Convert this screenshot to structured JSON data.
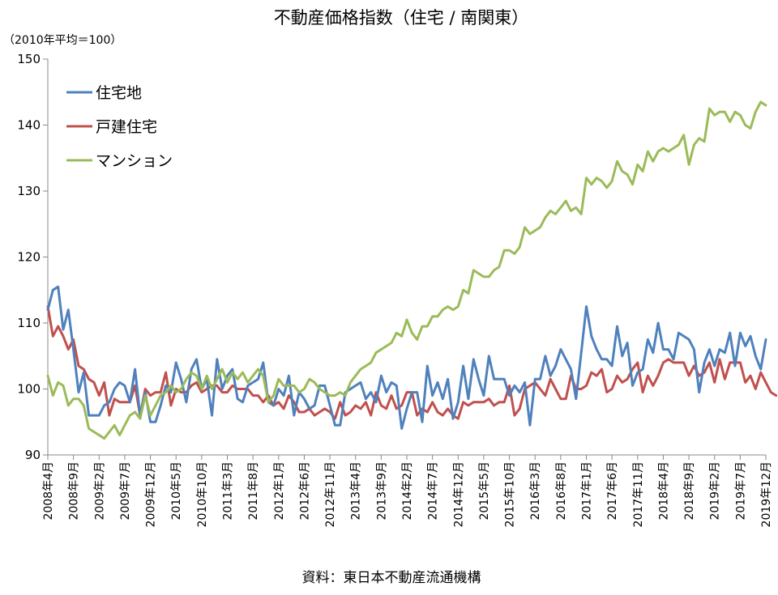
{
  "chart_data": {
    "type": "line",
    "title": "不動産価格指数（住宅 / 南関東）",
    "unit_label": "（2010年平均＝100）",
    "source": "資料：東日本不動産流通機構",
    "ylim": [
      90,
      150
    ],
    "yticks": [
      90,
      100,
      110,
      120,
      130,
      140,
      150
    ],
    "grid": false,
    "legend_position": "top-left",
    "x_start": "2008-04",
    "x_end": "2019-12",
    "x_tick_labels": [
      "2008年4月",
      "2008年9月",
      "2009年2月",
      "2009年7月",
      "2009年12月",
      "2010年5月",
      "2010年10月",
      "2011年3月",
      "2011年8月",
      "2012年1月",
      "2012年6月",
      "2012年11月",
      "2013年4月",
      "2013年9月",
      "2014年2月",
      "2014年7月",
      "2014年12月",
      "2015年5月",
      "2015年10月",
      "2016年3月",
      "2016年8月",
      "2017年1月",
      "2017年6月",
      "2017年11月",
      "2018年4月",
      "2018年9月",
      "2019年2月",
      "2019年7月",
      "2019年12月"
    ],
    "series": [
      {
        "name": "住宅地",
        "color": "#4F81BD",
        "values": [
          112,
          115,
          115.5,
          109,
          112,
          106,
          99.5,
          102.5,
          96,
          96,
          96,
          97.5,
          98,
          100,
          101,
          100.5,
          98,
          103,
          96,
          99.5,
          95,
          95,
          97.5,
          100.5,
          99.5,
          104,
          101.5,
          98,
          103,
          104.5,
          100,
          101.5,
          96,
          104.5,
          100,
          102,
          103,
          98.5,
          98,
          100.5,
          101,
          101.5,
          104,
          98,
          97.5,
          100,
          99,
          102,
          96,
          99.5,
          98.5,
          97,
          97.5,
          100.5,
          100.5,
          97.5,
          94.5,
          94.5,
          99.5,
          100,
          100.5,
          101,
          98.5,
          99.5,
          98,
          102,
          99.5,
          101,
          100.5,
          94,
          97,
          99.5,
          99.5,
          95,
          103.5,
          99,
          101,
          98.5,
          101.5,
          95.5,
          98,
          103.5,
          98.5,
          104.5,
          101.5,
          99,
          105,
          101.5,
          101.5,
          101.5,
          99,
          100.5,
          99.5,
          101,
          94.5,
          101.5,
          101.5,
          105,
          102,
          103.5,
          106,
          104.5,
          103,
          98.5,
          105.5,
          112.5,
          108,
          106,
          104.5,
          104.5,
          103.5,
          109.5,
          105,
          107,
          100.5,
          102.5,
          103,
          107.5,
          105.5,
          110,
          106,
          106,
          104.5,
          108.5,
          108,
          107.5,
          106,
          99.5,
          104,
          106,
          103.5,
          106,
          105.5,
          108.5,
          103.5,
          108.5,
          106.5,
          108,
          105,
          103,
          107.5
        ]
      },
      {
        "name": "戸建住宅",
        "color": "#C0504D",
        "values": [
          112.5,
          108,
          109.5,
          108,
          106,
          107.5,
          103.5,
          103,
          101.5,
          101,
          99,
          101,
          96,
          98.5,
          98,
          98,
          98,
          100.5,
          96,
          100,
          99,
          99.5,
          99.5,
          102.5,
          97.5,
          100,
          99.5,
          99.5,
          100.5,
          101,
          99.5,
          100,
          100.5,
          100.5,
          99.5,
          99.5,
          100.5,
          100,
          100,
          100,
          99,
          99,
          98,
          99,
          97.5,
          98,
          97,
          99,
          98,
          96.5,
          96.5,
          97,
          96,
          96.5,
          97,
          96.5,
          95.5,
          98,
          96,
          96.5,
          97.5,
          97,
          98,
          96,
          99.5,
          97.5,
          97,
          99,
          97,
          97.5,
          99.5,
          99.5,
          96,
          97,
          96.5,
          98,
          96.5,
          96,
          97,
          96,
          95.5,
          98,
          97.5,
          98,
          98,
          98,
          98.5,
          97.5,
          98,
          98,
          100.5,
          96,
          97,
          100,
          100.5,
          101,
          100,
          99,
          101.5,
          100,
          98.5,
          98.5,
          102,
          100,
          100,
          100.5,
          102.5,
          102,
          103,
          99.5,
          100,
          102,
          101,
          101.5,
          103,
          104,
          99.5,
          102,
          100.5,
          102,
          104,
          104.5,
          104,
          104,
          104,
          102,
          103.5,
          102,
          102.5,
          104,
          101,
          104.5,
          101.5,
          104,
          104,
          104,
          101,
          102,
          100,
          102.5,
          101,
          99.5,
          99
        ]
      },
      {
        "name": "マンション",
        "color": "#9BBB59",
        "values": [
          102,
          99,
          101,
          100.5,
          97.5,
          98.5,
          98.5,
          97.5,
          94,
          93.5,
          93,
          92.5,
          93.5,
          94.5,
          93,
          94.5,
          96,
          96.5,
          95.5,
          99,
          96,
          97.5,
          99,
          99.5,
          100.5,
          99.5,
          100,
          101.5,
          102.5,
          102,
          100,
          102,
          100,
          101.5,
          103,
          101,
          102.5,
          101.5,
          102.5,
          101,
          102,
          103,
          102,
          98,
          99,
          101.5,
          100.5,
          100.5,
          100.5,
          99.5,
          100,
          101.5,
          101,
          100,
          99.5,
          99,
          99,
          99.5,
          99,
          101,
          102,
          103,
          103.5,
          104,
          105.5,
          106,
          106.5,
          107,
          108.5,
          108,
          110.5,
          108.5,
          107.5,
          109.5,
          109.5,
          111,
          111,
          112,
          112.5,
          112,
          112.5,
          115,
          114.5,
          118,
          117.5,
          117,
          117,
          118,
          118.5,
          121,
          121,
          120.5,
          121.5,
          124.5,
          123.5,
          124,
          124.5,
          126,
          127,
          126.5,
          127.5,
          128.5,
          127,
          127.5,
          126.5,
          132,
          131,
          132,
          131.5,
          130.5,
          131.5,
          134.5,
          133,
          132.5,
          131,
          134,
          133,
          136,
          134.5,
          136,
          136.5,
          136,
          136.5,
          137,
          138.5,
          134,
          137,
          138,
          137.5,
          142.5,
          141.5,
          142,
          142,
          140.5,
          142,
          141.5,
          140,
          139.5,
          142,
          143.5,
          143
        ]
      }
    ]
  }
}
